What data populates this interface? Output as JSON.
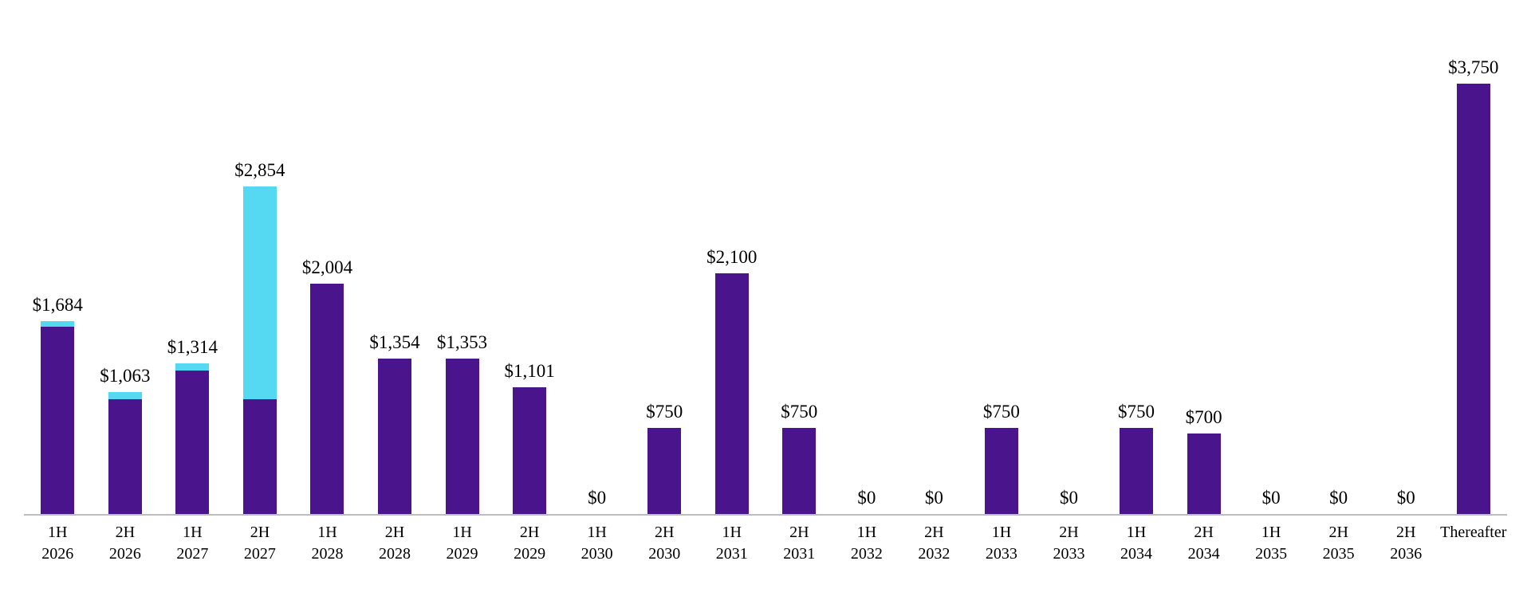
{
  "chart_data": {
    "type": "bar",
    "stacked": true,
    "title": "",
    "xlabel": "",
    "ylabel": "",
    "legend": "none",
    "grid": false,
    "background": "#ffffff",
    "axis_line_color": "#bdbdbd",
    "ylim": [
      0,
      3750
    ],
    "categories": [
      [
        "1H",
        "2026"
      ],
      [
        "2H",
        "2026"
      ],
      [
        "1H",
        "2027"
      ],
      [
        "2H",
        "2027"
      ],
      [
        "1H",
        "2028"
      ],
      [
        "2H",
        "2028"
      ],
      [
        "1H",
        "2029"
      ],
      [
        "2H",
        "2029"
      ],
      [
        "1H",
        "2030"
      ],
      [
        "2H",
        "2030"
      ],
      [
        "1H",
        "2031"
      ],
      [
        "2H",
        "2031"
      ],
      [
        "1H",
        "2032"
      ],
      [
        "2H",
        "2032"
      ],
      [
        "1H",
        "2033"
      ],
      [
        "2H",
        "2033"
      ],
      [
        "1H",
        "2034"
      ],
      [
        "2H",
        "2034"
      ],
      [
        "1H",
        "2035"
      ],
      [
        "2H",
        "2035"
      ],
      [
        "2H",
        "2036"
      ],
      [
        "Thereafter"
      ]
    ],
    "series": [
      {
        "name": "purple-series",
        "color": "#4a148c",
        "values": [
          1634,
          1000,
          1250,
          1000,
          2004,
          1354,
          1353,
          1101,
          0,
          750,
          2100,
          750,
          0,
          0,
          750,
          0,
          750,
          700,
          0,
          0,
          0,
          3750
        ]
      },
      {
        "name": "cyan-series",
        "color": "#55d9f2",
        "values": [
          50,
          63,
          64,
          1854,
          0,
          0,
          0,
          0,
          0,
          0,
          0,
          0,
          0,
          0,
          0,
          0,
          0,
          0,
          0,
          0,
          0,
          0
        ]
      }
    ],
    "totals": [
      1684,
      1063,
      1314,
      2854,
      2004,
      1354,
      1353,
      1101,
      0,
      750,
      2100,
      750,
      0,
      0,
      750,
      0,
      750,
      700,
      0,
      0,
      0,
      3750
    ],
    "total_labels": [
      "$1,684",
      "$1,063",
      "$1,314",
      "$2,854",
      "$2,004",
      "$1,354",
      "$1,353",
      "$1,101",
      "$0",
      "$750",
      "$2,100",
      "$750",
      "$0",
      "$0",
      "$750",
      "$0",
      "$750",
      "$700",
      "$0",
      "$0",
      "$0",
      "$3,750"
    ]
  }
}
